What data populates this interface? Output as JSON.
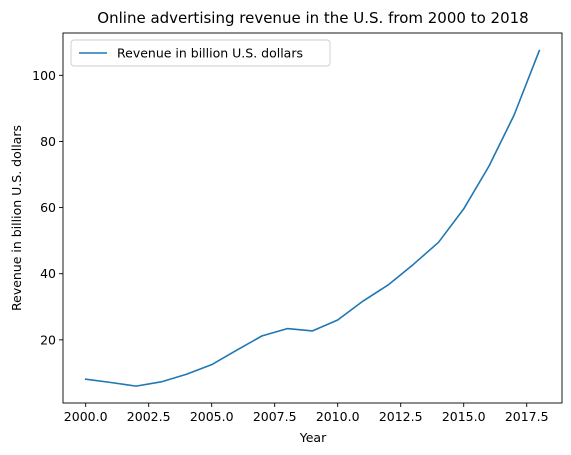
{
  "chart_data": {
    "type": "line",
    "title": "Online advertising revenue in the U.S. from 2000 to 2018",
    "xlabel": "Year",
    "ylabel": "Revenue in billion U.S. dollars",
    "xlim": [
      1999.1,
      2018.9
    ],
    "ylim": [
      0.9,
      112.8
    ],
    "x_ticks": [
      2000.0,
      2002.5,
      2005.0,
      2007.5,
      2010.0,
      2012.5,
      2015.0,
      2017.5
    ],
    "x_tick_labels": [
      "2000.0",
      "2002.5",
      "2005.0",
      "2007.5",
      "2010.0",
      "2012.5",
      "2015.0",
      "2017.5"
    ],
    "y_ticks": [
      20,
      40,
      60,
      80,
      100
    ],
    "y_tick_labels": [
      "20",
      "40",
      "60",
      "80",
      "100"
    ],
    "grid": false,
    "legend": {
      "location": "top-left"
    },
    "series": [
      {
        "name": "Revenue in billion U.S. dollars",
        "color": "#1f77b4",
        "x": [
          2000,
          2001,
          2002,
          2003,
          2004,
          2005,
          2006,
          2007,
          2008,
          2009,
          2010,
          2011,
          2012,
          2013,
          2014,
          2015,
          2016,
          2017,
          2018
        ],
        "y": [
          8.1,
          7.1,
          6.0,
          7.3,
          9.6,
          12.5,
          16.9,
          21.2,
          23.4,
          22.7,
          26.0,
          31.7,
          36.6,
          42.8,
          49.5,
          59.6,
          72.5,
          88.0,
          107.5
        ]
      }
    ]
  }
}
